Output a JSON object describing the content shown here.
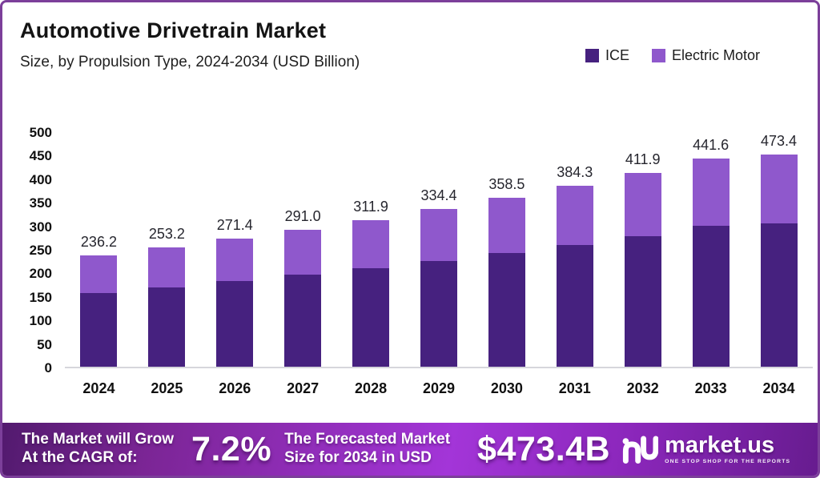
{
  "frame": {
    "border_color": "#7c3f9a"
  },
  "header": {
    "title": "Automotive Drivetrain Market",
    "subtitle": "Size, by Propulsion Type, 2024-2034 (USD Billion)"
  },
  "legend": {
    "items": [
      {
        "label": "ICE",
        "color": "#46217f"
      },
      {
        "label": "Electric Motor",
        "color": "#8f58cc"
      }
    ]
  },
  "chart_data": {
    "type": "bar",
    "stacked": true,
    "title": "Automotive Drivetrain Market Size, by Propulsion Type, 2024-2034 (USD Billion)",
    "categories": [
      "2024",
      "2025",
      "2026",
      "2027",
      "2028",
      "2029",
      "2030",
      "2031",
      "2032",
      "2033",
      "2034"
    ],
    "series": [
      {
        "name": "ICE",
        "color": "#46217f",
        "values": [
          157,
          168,
          182,
          195,
          209,
          224,
          241,
          258,
          277,
          299,
          320
        ]
      },
      {
        "name": "Electric Motor",
        "color": "#8f58cc",
        "values": [
          79.2,
          85.2,
          89.4,
          96.0,
          102.9,
          110.4,
          117.5,
          126.3,
          134.9,
          142.6,
          153.4
        ]
      }
    ],
    "totals": [
      236.2,
      253.2,
      271.4,
      291.0,
      311.9,
      334.4,
      358.5,
      384.3,
      411.9,
      441.6,
      473.4
    ],
    "total_labels": [
      "236.2",
      "253.2",
      "271.4",
      "291.0",
      "311.9",
      "334.4",
      "358.5",
      "384.3",
      "411.9",
      "441.6",
      "473.4"
    ],
    "xlabel": "",
    "ylabel": "",
    "ylim": [
      0,
      500
    ],
    "yticks": [
      0,
      50,
      100,
      150,
      200,
      250,
      300,
      350,
      400,
      450,
      500
    ],
    "grid": false,
    "legend_position": "top-right"
  },
  "banner": {
    "cagr_label_line1": "The Market will Grow",
    "cagr_label_line2": "At the CAGR of:",
    "cagr_value": "7.2%",
    "forecast_label_line1": "The Forecasted Market",
    "forecast_label_line2": "Size for 2034 in USD",
    "forecast_value": "$473.4B",
    "brand_name": "market.us",
    "brand_tagline": "ONE STOP SHOP FOR THE REPORTS"
  }
}
